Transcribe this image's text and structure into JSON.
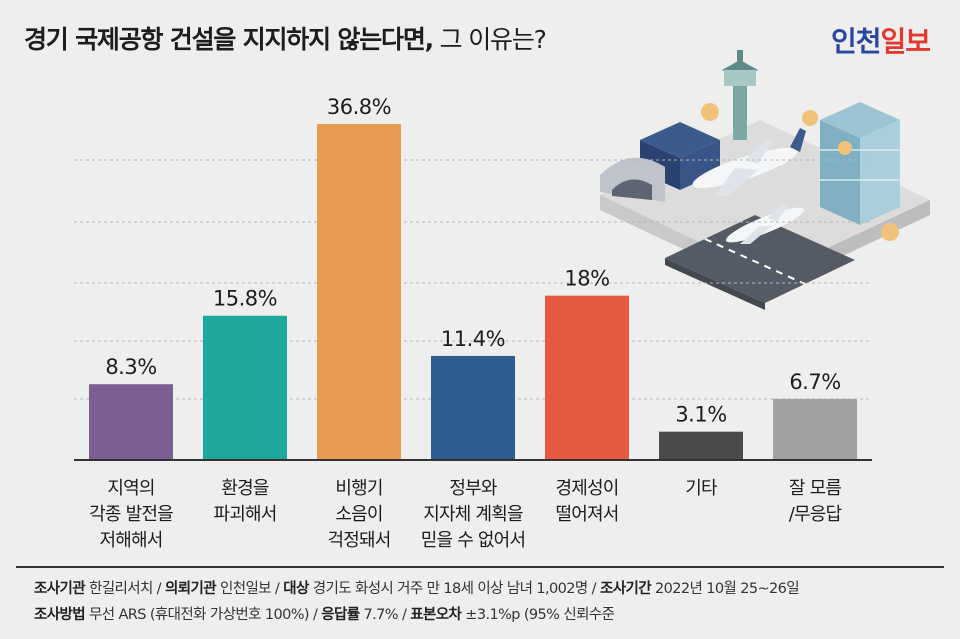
{
  "title": {
    "bold": "경기 국제공항 건설을 지지하지 않는다면,",
    "light": "그 이유는?"
  },
  "logo": {
    "part1": "인천",
    "part2": "일보",
    "color1": "#2a47a0",
    "color2": "#e23a2e"
  },
  "colors": {
    "background": "#eeeeee",
    "gridline": "#b5b5b5",
    "baseline": "#333333"
  },
  "chart_data": {
    "type": "bar",
    "title": "경기 국제공항 건설을 지지하지 않는다면, 그 이유는?",
    "ylim": [
      0,
      40
    ],
    "grid": true,
    "categories": [
      [
        "지역의",
        "각종 발전을",
        "저해해서"
      ],
      [
        "환경을",
        "파괴해서"
      ],
      [
        "비행기",
        "소음이",
        "걱정돼서"
      ],
      [
        "정부와",
        "지자체 계획을",
        "믿을 수 없어서"
      ],
      [
        "경제성이",
        "떨어져서"
      ],
      [
        "기타"
      ],
      [
        "잘 모름",
        "/무응답"
      ]
    ],
    "values": [
      8.3,
      15.8,
      36.8,
      11.4,
      18,
      3.1,
      6.7
    ],
    "value_labels": [
      "8.3%",
      "15.8%",
      "36.8%",
      "11.4%",
      "18%",
      "3.1%",
      "6.7%"
    ],
    "bar_colors": [
      "#7b5f93",
      "#1ca89b",
      "#e89b52",
      "#2e5c93",
      "#e55a3f",
      "#4b4a4a",
      "#a2a2a2"
    ]
  },
  "footer": {
    "line1": [
      {
        "label": "조사기관",
        "text": "한길리서치 /"
      },
      {
        "label": "의뢰기관",
        "text": "인천일보 /"
      },
      {
        "label": "대상",
        "text": "경기도 화성시 거주 만 18세 이상 남녀 1,002명 /"
      },
      {
        "label": "조사기간",
        "text": "2022년 10월 25~26일"
      }
    ],
    "line2": [
      {
        "label": "조사방법",
        "text": "무선 ARS (휴대전화 가상번호 100%) /"
      },
      {
        "label": "응답률",
        "text": "7.7% /"
      },
      {
        "label": "표본오차",
        "text": "±3.1%p (95% 신뢰수준"
      }
    ]
  }
}
